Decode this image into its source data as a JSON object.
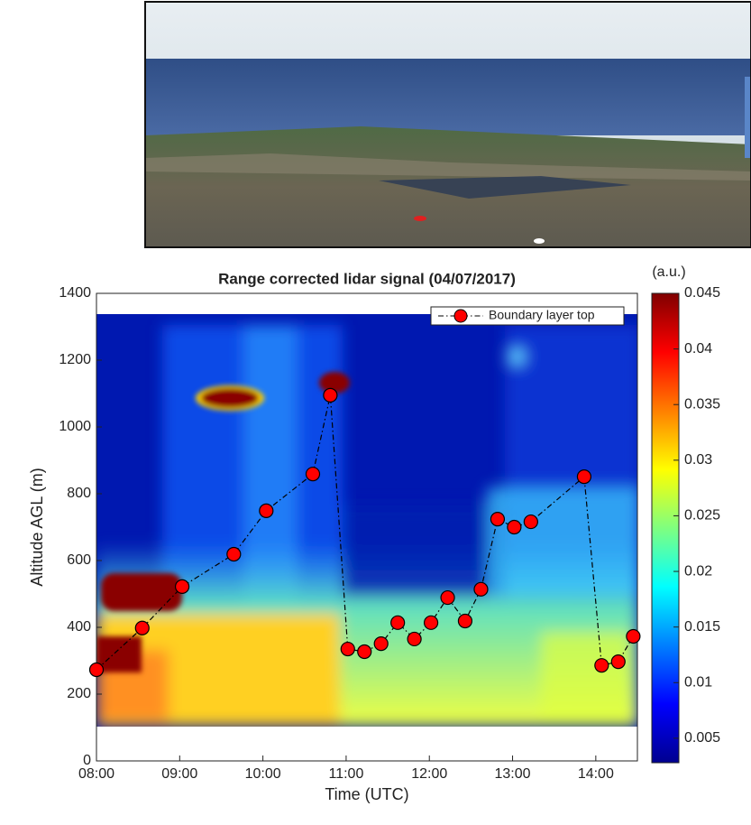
{
  "chart_data": {
    "type": "line",
    "title": "Range corrected lidar signal (04/07/2017)",
    "xlabel": "Time (UTC)",
    "ylabel": "Altitude AGL (m)",
    "x": [
      8.0,
      8.55,
      9.03,
      9.65,
      10.04,
      10.6,
      10.81,
      11.02,
      11.22,
      11.42,
      11.62,
      11.82,
      12.02,
      12.22,
      12.43,
      12.62,
      12.82,
      13.02,
      13.22,
      13.86,
      14.07,
      14.27,
      14.45
    ],
    "series": [
      {
        "name": "Boundary layer top",
        "color": "#ff0000",
        "values": [
          273,
          398,
          522,
          619,
          749,
          859,
          1095,
          335,
          327,
          351,
          414,
          365,
          414,
          489,
          419,
          514,
          724,
          700,
          716,
          851,
          286,
          297,
          373
        ]
      }
    ],
    "xlim": [
      8.0,
      14.5
    ],
    "xticks": [
      {
        "value": 8,
        "label": "08:00"
      },
      {
        "value": 9,
        "label": "09:00"
      },
      {
        "value": 10,
        "label": "10:00"
      },
      {
        "value": 11,
        "label": "11:00"
      },
      {
        "value": 12,
        "label": "12:00"
      },
      {
        "value": 13,
        "label": "13:00"
      },
      {
        "value": 14,
        "label": "14:00"
      }
    ],
    "ylim": [
      0,
      1400
    ],
    "yticks": [
      0,
      200,
      400,
      600,
      800,
      1000,
      1200,
      1400
    ],
    "colorbar": {
      "label": "(a.u.)",
      "lim": [
        0.0028,
        0.045
      ],
      "ticks": [
        0.005,
        0.01,
        0.015,
        0.02,
        0.025,
        0.03,
        0.035,
        0.04,
        0.045
      ]
    },
    "legend": "upper right"
  }
}
